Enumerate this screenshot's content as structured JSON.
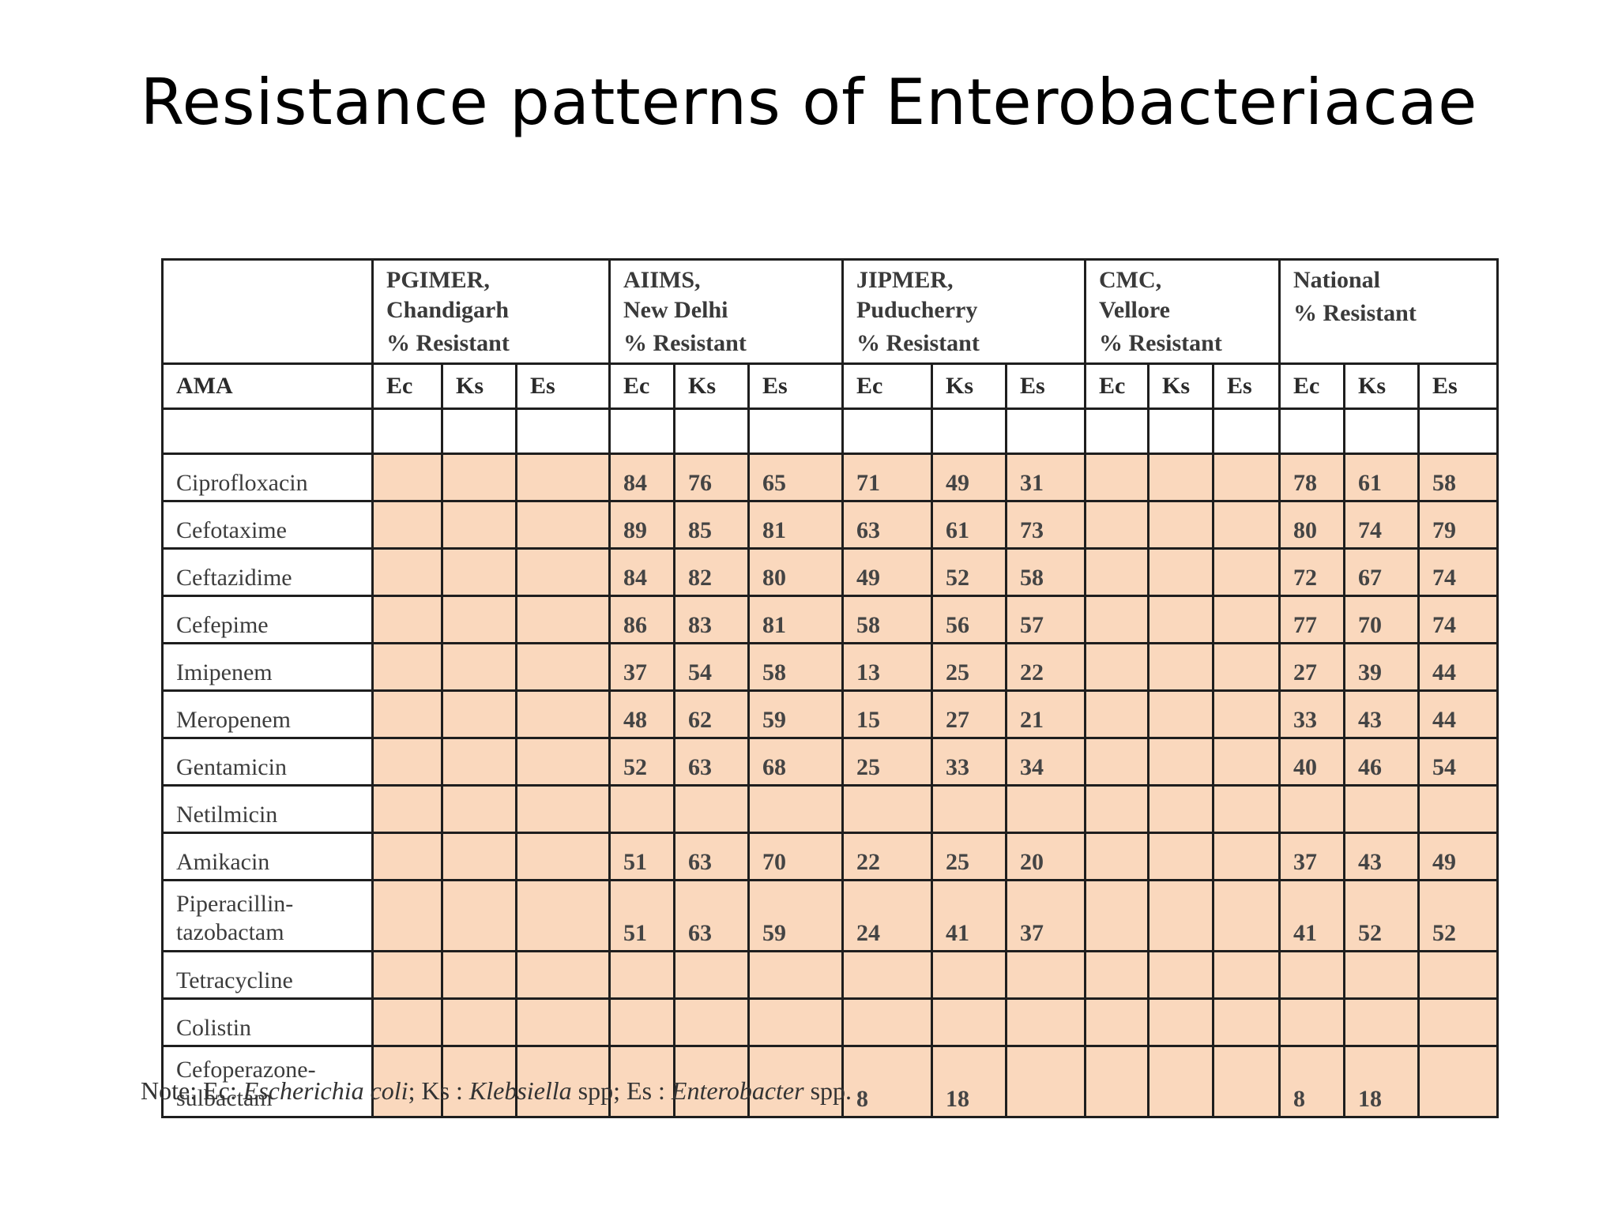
{
  "title": "Resistance patterns of Enterobacteriacae",
  "table": {
    "groups": [
      {
        "name": "PGIMER,\nChandigarh",
        "sub": "% Resistant"
      },
      {
        "name": "AIIMS,\nNew Delhi",
        "sub": "% Resistant"
      },
      {
        "name": "JIPMER,\nPuducherry",
        "sub": "% Resistant"
      },
      {
        "name": "CMC,\nVellore",
        "sub": "% Resistant"
      },
      {
        "name": "National",
        "sub": "% Resistant"
      }
    ],
    "ama_label": "AMA",
    "species": [
      "Ec",
      "Ks",
      "Es"
    ],
    "rows": [
      {
        "drug": "Ciprofloxacin",
        "values": [
          "",
          "",
          "",
          "84",
          "76",
          "65",
          "71",
          "49",
          "31",
          "",
          "",
          "",
          "78",
          "61",
          "58"
        ]
      },
      {
        "drug": "Cefotaxime",
        "values": [
          "",
          "",
          "",
          "89",
          "85",
          "81",
          "63",
          "61",
          "73",
          "",
          "",
          "",
          "80",
          "74",
          "79"
        ]
      },
      {
        "drug": "Ceftazidime",
        "values": [
          "",
          "",
          "",
          "84",
          "82",
          "80",
          "49",
          "52",
          "58",
          "",
          "",
          "",
          "72",
          "67",
          "74"
        ]
      },
      {
        "drug": "Cefepime",
        "values": [
          "",
          "",
          "",
          "86",
          "83",
          "81",
          "58",
          "56",
          "57",
          "",
          "",
          "",
          "77",
          "70",
          "74"
        ]
      },
      {
        "drug": "Imipenem",
        "values": [
          "",
          "",
          "",
          "37",
          "54",
          "58",
          "13",
          "25",
          "22",
          "",
          "",
          "",
          "27",
          "39",
          "44"
        ]
      },
      {
        "drug": "Meropenem",
        "values": [
          "",
          "",
          "",
          "48",
          "62",
          "59",
          "15",
          "27",
          "21",
          "",
          "",
          "",
          "33",
          "43",
          "44"
        ]
      },
      {
        "drug": "Gentamicin",
        "values": [
          "",
          "",
          "",
          "52",
          "63",
          "68",
          "25",
          "33",
          "34",
          "",
          "",
          "",
          "40",
          "46",
          "54"
        ]
      },
      {
        "drug": "Netilmicin",
        "values": [
          "",
          "",
          "",
          "",
          "",
          "",
          "",
          "",
          "",
          "",
          "",
          "",
          "",
          "",
          ""
        ]
      },
      {
        "drug": "Amikacin",
        "values": [
          "",
          "",
          "",
          "51",
          "63",
          "70",
          "22",
          "25",
          "20",
          "",
          "",
          "",
          "37",
          "43",
          "49"
        ]
      },
      {
        "drug": "Piperacillin-\ntazobactam",
        "tall": true,
        "values": [
          "",
          "",
          "",
          "51",
          "63",
          "59",
          "24",
          "41",
          "37",
          "",
          "",
          "",
          "41",
          "52",
          "52"
        ]
      },
      {
        "drug": "Tetracycline",
        "values": [
          "",
          "",
          "",
          "",
          "",
          "",
          "",
          "",
          "",
          "",
          "",
          "",
          "",
          "",
          ""
        ]
      },
      {
        "drug": "Colistin",
        "values": [
          "",
          "",
          "",
          "",
          "",
          "",
          "",
          "",
          "",
          "",
          "",
          "",
          "",
          "",
          ""
        ]
      },
      {
        "drug": "Cefoperazone-\nsulbactam",
        "tall": true,
        "values": [
          "",
          "",
          "",
          "",
          "",
          "",
          "8",
          "18",
          "",
          "",
          "",
          "",
          "8",
          "18",
          ""
        ]
      }
    ]
  },
  "note": {
    "prefix": "Note: Ec: ",
    "ec": "Escherichia coli",
    "ks_label": "; Ks : ",
    "ks": "Klebsiella",
    "es_label": " spp; Es : ",
    "es": "Enterobacter",
    "suffix": " spp."
  },
  "colors": {
    "cell_fill": "#fad8bd",
    "border": "#1e1e1e"
  }
}
